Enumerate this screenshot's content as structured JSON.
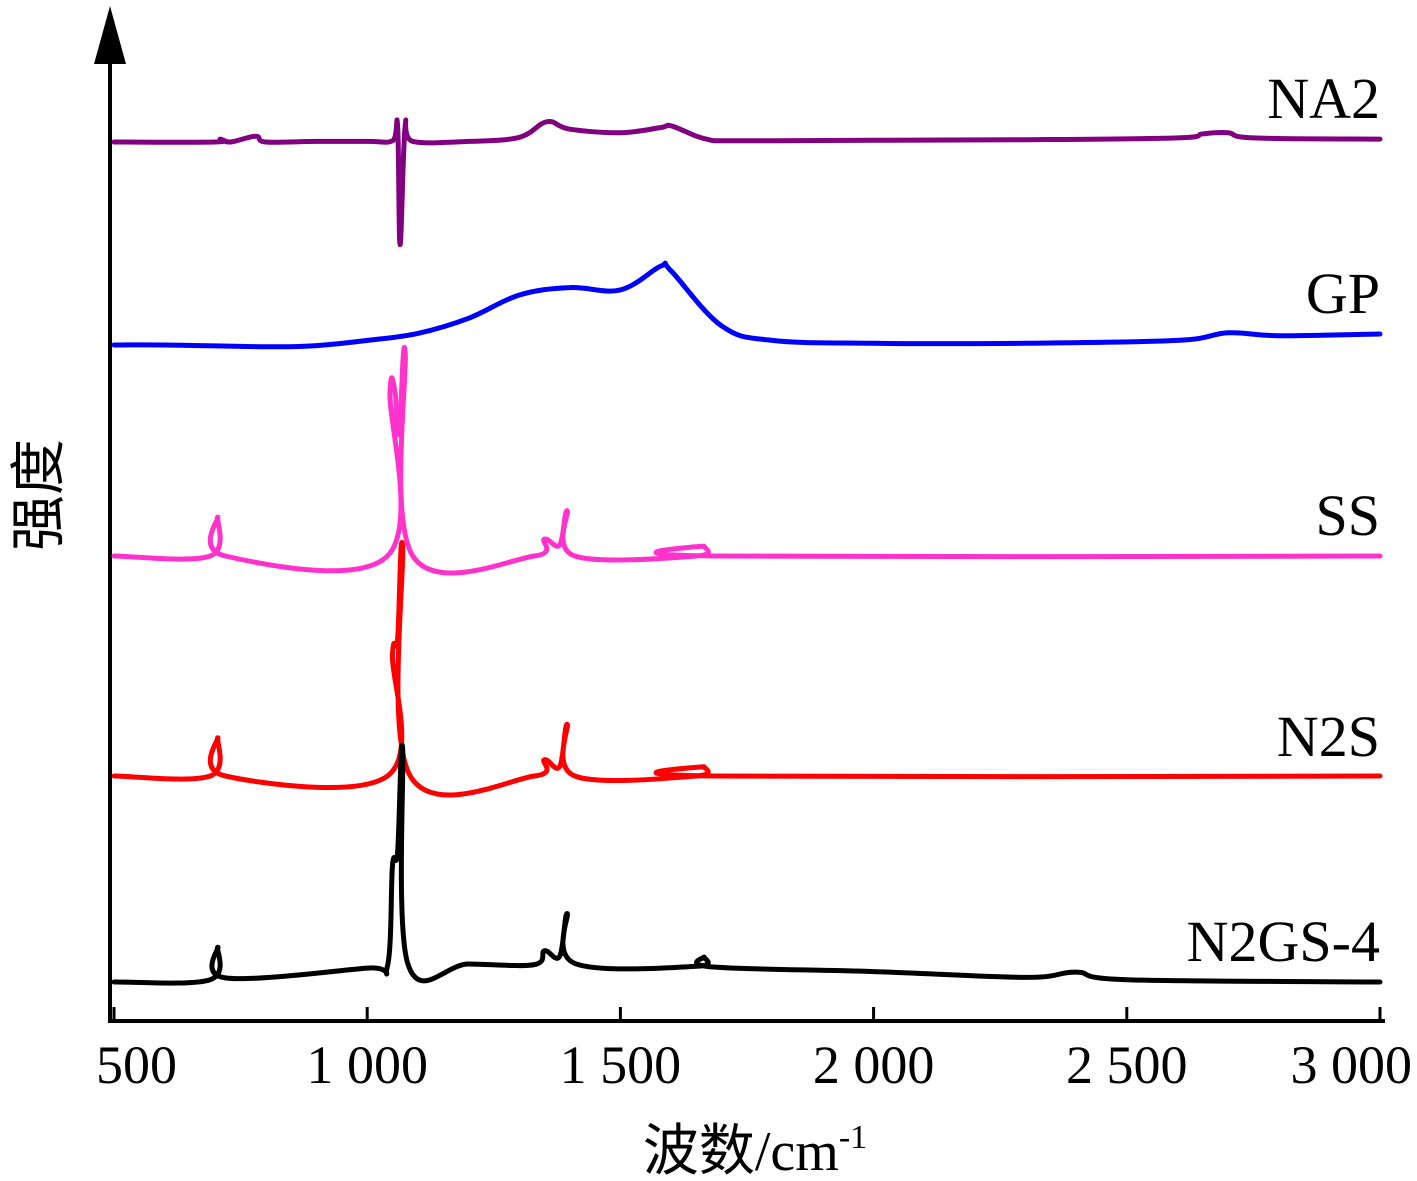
{
  "chart_data": {
    "type": "line",
    "xlabel": "波数/cm",
    "xlabel_sup": "-1",
    "ylabel": "强度",
    "xlim": [
      500,
      3000
    ],
    "xticks": [
      500,
      1000,
      1500,
      2000,
      2500,
      3000
    ],
    "xtick_labels": [
      "500",
      "1 000",
      "1 500",
      "2 000",
      "2 500",
      "3 000"
    ],
    "legend": "series labels at right end of each trace",
    "stacked_offset": true,
    "series": [
      {
        "name": "NA2",
        "color": "#800080",
        "baseline": 0.38,
        "points": [
          [
            500,
            0.38
          ],
          [
            700,
            0.38
          ],
          [
            710,
            0.33
          ],
          [
            730,
            0.38
          ],
          [
            780,
            0.28
          ],
          [
            800,
            0.38
          ],
          [
            900,
            0.37
          ],
          [
            1000,
            0.37
          ],
          [
            1050,
            0.36
          ],
          [
            1060,
            0.1
          ],
          [
            1065,
            2.15
          ],
          [
            1075,
            0.1
          ],
          [
            1090,
            0.37
          ],
          [
            1200,
            0.37
          ],
          [
            1300,
            0.3
          ],
          [
            1355,
            0.03
          ],
          [
            1400,
            0.16
          ],
          [
            1500,
            0.22
          ],
          [
            1580,
            0.13
          ],
          [
            1600,
            0.1
          ],
          [
            1650,
            0.28
          ],
          [
            1680,
            0.35
          ],
          [
            1700,
            0.36
          ],
          [
            1800,
            0.36
          ],
          [
            2000,
            0.35
          ],
          [
            2300,
            0.34
          ],
          [
            2600,
            0.31
          ],
          [
            2650,
            0.24
          ],
          [
            2700,
            0.22
          ],
          [
            2750,
            0.31
          ],
          [
            3000,
            0.33
          ]
        ]
      },
      {
        "name": "GP",
        "color": "#0000ff",
        "baseline": 0.36,
        "points": [
          [
            500,
            0.36
          ],
          [
            600,
            0.36
          ],
          [
            800,
            0.39
          ],
          [
            900,
            0.37
          ],
          [
            1000,
            0.28
          ],
          [
            1100,
            0.16
          ],
          [
            1200,
            -0.1
          ],
          [
            1300,
            -0.5
          ],
          [
            1400,
            -0.63
          ],
          [
            1500,
            -0.59
          ],
          [
            1580,
            -1.0
          ],
          [
            1600,
            -0.92
          ],
          [
            1700,
            0.03
          ],
          [
            1800,
            0.28
          ],
          [
            2000,
            0.33
          ],
          [
            2300,
            0.33
          ],
          [
            2600,
            0.28
          ],
          [
            2700,
            0.15
          ],
          [
            2800,
            0.2
          ],
          [
            3000,
            0.17
          ]
        ]
      },
      {
        "name": "SS",
        "color": "#ff33cc",
        "baseline": 0.47,
        "points": [
          [
            500,
            0.47
          ],
          [
            690,
            0.47
          ],
          [
            705,
            -0.2
          ],
          [
            720,
            0.47
          ],
          [
            1040,
            0.47
          ],
          [
            1045,
            -2.35
          ],
          [
            1055,
            -2.35
          ],
          [
            1060,
            -1.7
          ],
          [
            1065,
            -1.8
          ],
          [
            1075,
            -3.05
          ],
          [
            1090,
            0.47
          ],
          [
            1330,
            0.47
          ],
          [
            1350,
            0.18
          ],
          [
            1380,
            0.28
          ],
          [
            1395,
            -0.31
          ],
          [
            1410,
            0.47
          ],
          [
            1650,
            0.47
          ],
          [
            1665,
            0.3
          ],
          [
            1680,
            0.47
          ],
          [
            3000,
            0.47
          ]
        ]
      },
      {
        "name": "N2S",
        "color": "#ff0000",
        "baseline": 0.46,
        "points": [
          [
            500,
            0.46
          ],
          [
            690,
            0.46
          ],
          [
            705,
            -0.2
          ],
          [
            720,
            0.46
          ],
          [
            1040,
            0.46
          ],
          [
            1050,
            -1.65
          ],
          [
            1060,
            -1.9
          ],
          [
            1070,
            -3.5
          ],
          [
            1085,
            0.46
          ],
          [
            1330,
            0.46
          ],
          [
            1350,
            0.18
          ],
          [
            1380,
            0.3
          ],
          [
            1395,
            -0.43
          ],
          [
            1410,
            0.46
          ],
          [
            1650,
            0.46
          ],
          [
            1665,
            0.3
          ],
          [
            1680,
            0.46
          ],
          [
            3000,
            0.46
          ]
        ]
      },
      {
        "name": "N2GS-4",
        "color": "#000000",
        "baseline": 0.34,
        "points": [
          [
            500,
            0.34
          ],
          [
            690,
            0.3
          ],
          [
            705,
            -0.26
          ],
          [
            720,
            0.27
          ],
          [
            1000,
            0.1
          ],
          [
            1040,
            0.06
          ],
          [
            1050,
            -1.67
          ],
          [
            1060,
            -1.9
          ],
          [
            1070,
            -3.7
          ],
          [
            1080,
            0.02
          ],
          [
            1200,
            0.03
          ],
          [
            1330,
            0.04
          ],
          [
            1350,
            -0.2
          ],
          [
            1380,
            -0.1
          ],
          [
            1395,
            -0.84
          ],
          [
            1410,
            0.02
          ],
          [
            1650,
            0.07
          ],
          [
            1665,
            -0.09
          ],
          [
            1680,
            0.08
          ],
          [
            2000,
            0.16
          ],
          [
            2300,
            0.26
          ],
          [
            2400,
            0.17
          ],
          [
            2500,
            0.3
          ],
          [
            3000,
            0.34
          ]
        ]
      }
    ]
  }
}
